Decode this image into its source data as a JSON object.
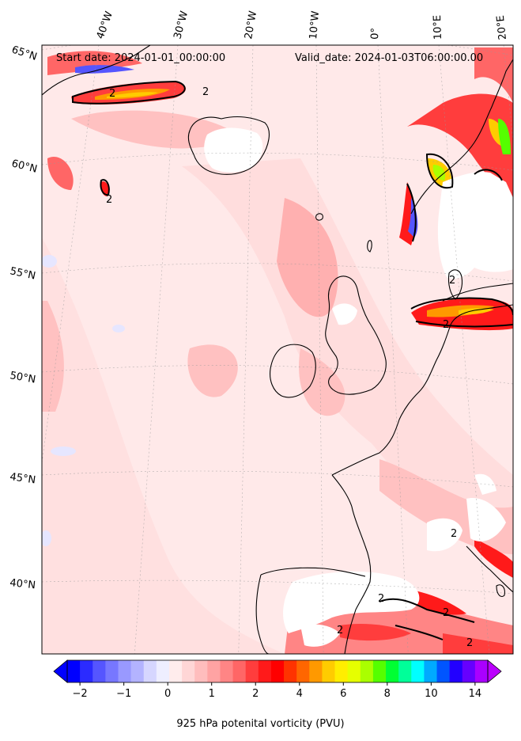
{
  "header": {
    "start_date": "Start date: 2024-01-01_00:00:00",
    "valid_date": "Valid_date: 2024-01-03T06:00:00.00"
  },
  "longitude_labels": [
    "40°W",
    "30°W",
    "20°W",
    "10°W",
    "0°",
    "10°E",
    "20°E"
  ],
  "latitude_labels": [
    "65°N",
    "60°N",
    "55°N",
    "50°N",
    "45°N",
    "40°N"
  ],
  "contour_label": "2",
  "colorbar": {
    "title": "925 hPa potenital vorticity (PVU)",
    "tick_labels": [
      "−2",
      "−1",
      "0",
      "1",
      "2",
      "4",
      "6",
      "8",
      "10",
      "14"
    ],
    "colors": [
      "#0000ff",
      "#2b2bff",
      "#5555ff",
      "#7777ff",
      "#9999ff",
      "#b3b3ff",
      "#d6d6ff",
      "#eeeeff",
      "#ffecec",
      "#ffd6d6",
      "#ffbdbd",
      "#ffa3a3",
      "#ff8585",
      "#ff6666",
      "#ff3d3d",
      "#ff1a1a",
      "#ff0000",
      "#ff3300",
      "#ff6600",
      "#ff9900",
      "#ffcc00",
      "#ffee00",
      "#e6ff00",
      "#aaff00",
      "#55ff00",
      "#00ff33",
      "#00ff99",
      "#00ffff",
      "#00aaff",
      "#0055ff",
      "#2200ff",
      "#6600ff",
      "#aa00ff"
    ],
    "under_color": "#0000ff",
    "over_color": "#bb00ff"
  }
}
